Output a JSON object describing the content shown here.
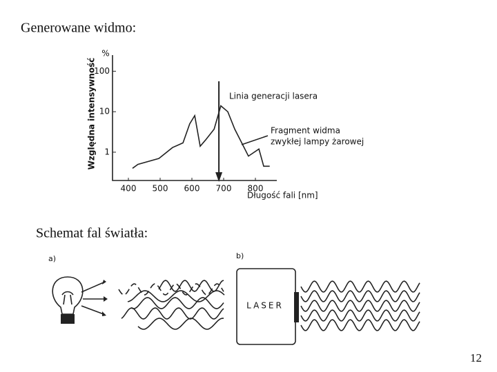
{
  "header": {
    "title": "Generowane widmo:"
  },
  "chart_data": {
    "type": "line",
    "log_scale": true,
    "ylabel": "Względna intensywność",
    "yunit": "%",
    "xlabel": "Długość fali [nm]",
    "x": [
      413,
      430,
      496,
      539,
      572,
      593,
      609,
      626,
      643,
      670,
      691,
      713,
      735,
      757,
      778,
      811,
      826,
      845
    ],
    "values": [
      0.4,
      0.5,
      0.7,
      1.3,
      1.7,
      5,
      8,
      1.4,
      2,
      3.7,
      14,
      10,
      3.7,
      1.7,
      0.8,
      1.2,
      0.45,
      0.45
    ],
    "color": "#222",
    "xlim": [
      350,
      850
    ],
    "xticks": [
      400,
      500,
      600,
      700,
      800
    ],
    "ylim": [
      0.2,
      250
    ],
    "yticks": [
      1,
      10,
      100
    ],
    "laser_line_x": 685,
    "annotations": [
      "Linia generacji lasera",
      "Fragment widma",
      "zwykłej lampy żarowej"
    ]
  },
  "diagram": {
    "title": "Schemat fal światła:",
    "panel_a": "a)",
    "panel_b": "b)",
    "laser_label": "LASER"
  },
  "page_number": 12
}
